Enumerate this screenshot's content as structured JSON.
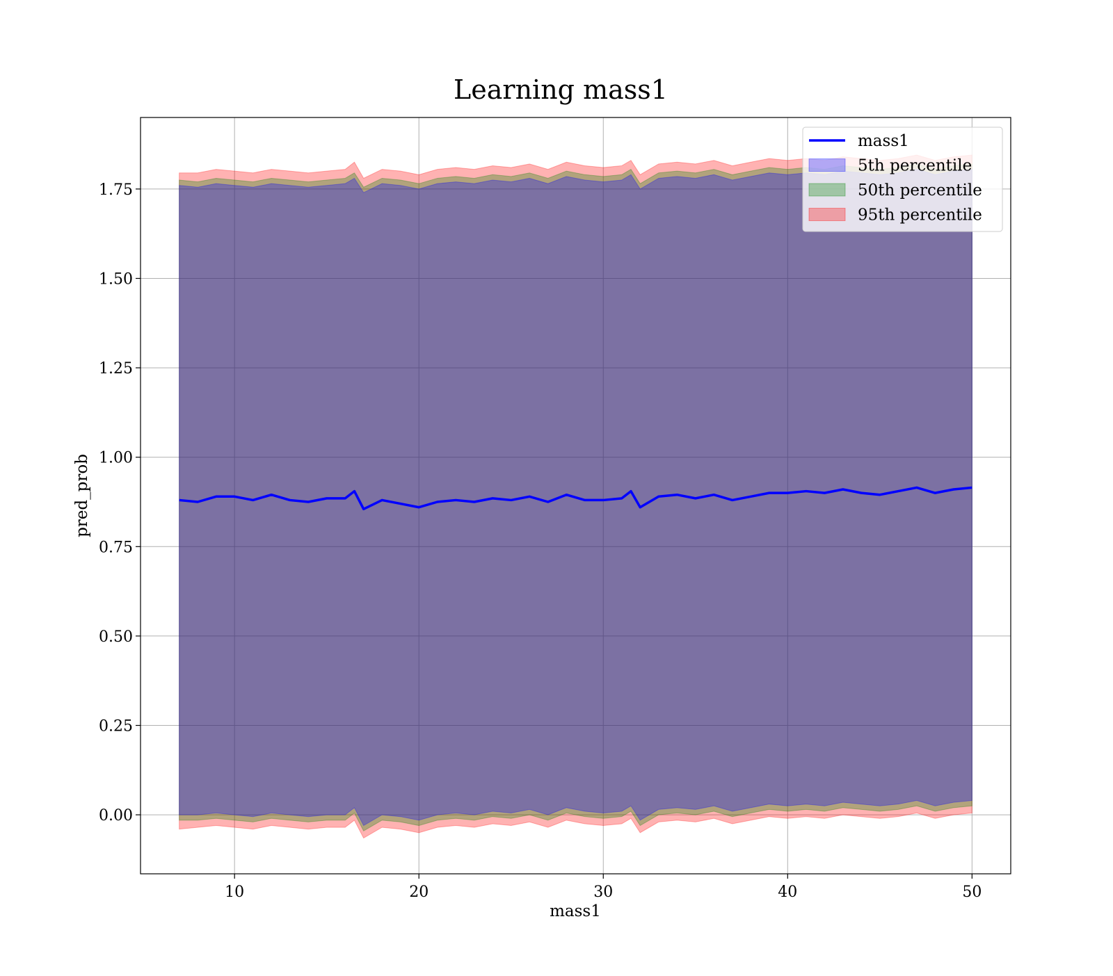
{
  "chart_data": {
    "type": "area",
    "title": "Learning mass1",
    "xlabel": "mass1",
    "ylabel": "pred_prob",
    "xlim": [
      4.9,
      52.1
    ],
    "ylim": [
      -0.165,
      1.95
    ],
    "x_ticks": [
      10,
      20,
      30,
      40,
      50
    ],
    "x_tick_labels": [
      "10",
      "20",
      "30",
      "40",
      "50"
    ],
    "y_ticks": [
      0.0,
      0.25,
      0.5,
      0.75,
      1.0,
      1.25,
      1.5,
      1.75
    ],
    "y_tick_labels": [
      "0.00",
      "0.25",
      "0.50",
      "0.75",
      "1.00",
      "1.25",
      "1.50",
      "1.75"
    ],
    "grid": true,
    "legend_position": "top-right",
    "x": [
      7.0,
      8.0,
      9.0,
      10.0,
      11.0,
      12.0,
      13.0,
      14.0,
      15.0,
      16.0,
      16.5,
      17.0,
      18.0,
      19.0,
      20.0,
      21.0,
      22.0,
      23.0,
      24.0,
      25.0,
      26.0,
      27.0,
      28.0,
      29.0,
      30.0,
      31.0,
      31.5,
      32.0,
      33.0,
      34.0,
      35.0,
      36.0,
      37.0,
      38.0,
      39.0,
      40.0,
      41.0,
      42.0,
      43.0,
      44.0,
      45.0,
      46.0,
      47.0,
      48.0,
      49.0,
      50.0
    ],
    "series": [
      {
        "name": "mass1",
        "kind": "line",
        "color": "#0000ff",
        "values": [
          0.88,
          0.875,
          0.89,
          0.89,
          0.88,
          0.895,
          0.88,
          0.875,
          0.885,
          0.885,
          0.905,
          0.855,
          0.88,
          0.87,
          0.86,
          0.875,
          0.88,
          0.875,
          0.885,
          0.88,
          0.89,
          0.875,
          0.895,
          0.88,
          0.88,
          0.885,
          0.905,
          0.86,
          0.89,
          0.895,
          0.885,
          0.895,
          0.88,
          0.89,
          0.9,
          0.9,
          0.905,
          0.9,
          0.91,
          0.9,
          0.895,
          0.905,
          0.915,
          0.9,
          0.91,
          0.915
        ]
      },
      {
        "name": "5th percentile",
        "kind": "band",
        "color": "#0000ff",
        "lower": [
          0.0,
          0.0,
          0.005,
          0.0,
          -0.005,
          0.005,
          0.0,
          -0.005,
          0.0,
          0.0,
          0.02,
          -0.03,
          0.0,
          -0.005,
          -0.015,
          0.0,
          0.005,
          0.0,
          0.01,
          0.005,
          0.015,
          0.0,
          0.02,
          0.01,
          0.005,
          0.01,
          0.025,
          -0.015,
          0.015,
          0.02,
          0.015,
          0.025,
          0.01,
          0.02,
          0.03,
          0.025,
          0.03,
          0.025,
          0.035,
          0.03,
          0.025,
          0.03,
          0.04,
          0.025,
          0.035,
          0.04
        ],
        "upper": [
          1.76,
          1.755,
          1.765,
          1.76,
          1.755,
          1.765,
          1.76,
          1.755,
          1.76,
          1.765,
          1.78,
          1.74,
          1.765,
          1.76,
          1.75,
          1.765,
          1.77,
          1.765,
          1.775,
          1.77,
          1.78,
          1.765,
          1.785,
          1.775,
          1.77,
          1.775,
          1.79,
          1.75,
          1.78,
          1.785,
          1.78,
          1.79,
          1.775,
          1.785,
          1.795,
          1.79,
          1.795,
          1.79,
          1.8,
          1.795,
          1.79,
          1.795,
          1.805,
          1.79,
          1.8,
          1.805
        ]
      },
      {
        "name": "50th percentile",
        "kind": "band",
        "color": "#008000",
        "lower": [
          -0.015,
          -0.015,
          -0.01,
          -0.015,
          -0.02,
          -0.01,
          -0.015,
          -0.02,
          -0.015,
          -0.015,
          0.005,
          -0.045,
          -0.015,
          -0.02,
          -0.03,
          -0.015,
          -0.01,
          -0.015,
          -0.005,
          -0.01,
          0.0,
          -0.015,
          0.005,
          -0.005,
          -0.01,
          -0.005,
          0.01,
          -0.03,
          0.0,
          0.005,
          0.0,
          0.01,
          -0.005,
          0.005,
          0.015,
          0.01,
          0.015,
          0.01,
          0.02,
          0.015,
          0.01,
          0.015,
          0.025,
          0.01,
          0.02,
          0.025
        ],
        "upper": [
          1.775,
          1.77,
          1.78,
          1.775,
          1.77,
          1.78,
          1.775,
          1.77,
          1.775,
          1.78,
          1.795,
          1.755,
          1.78,
          1.775,
          1.765,
          1.78,
          1.785,
          1.78,
          1.79,
          1.785,
          1.795,
          1.78,
          1.8,
          1.79,
          1.785,
          1.79,
          1.805,
          1.765,
          1.795,
          1.8,
          1.795,
          1.805,
          1.79,
          1.8,
          1.81,
          1.805,
          1.81,
          1.805,
          1.815,
          1.81,
          1.805,
          1.81,
          1.82,
          1.805,
          1.815,
          1.82
        ]
      },
      {
        "name": "95th percentile",
        "kind": "band",
        "color": "#ff0000",
        "lower": [
          -0.04,
          -0.035,
          -0.03,
          -0.035,
          -0.04,
          -0.03,
          -0.035,
          -0.04,
          -0.035,
          -0.035,
          -0.015,
          -0.065,
          -0.035,
          -0.04,
          -0.05,
          -0.035,
          -0.03,
          -0.035,
          -0.025,
          -0.03,
          -0.02,
          -0.035,
          -0.015,
          -0.025,
          -0.03,
          -0.025,
          -0.01,
          -0.05,
          -0.02,
          -0.015,
          -0.02,
          -0.01,
          -0.025,
          -0.015,
          -0.005,
          -0.01,
          -0.005,
          -0.01,
          0.0,
          -0.005,
          -0.01,
          -0.005,
          0.005,
          -0.01,
          0.0,
          0.005
        ],
        "upper": [
          1.795,
          1.795,
          1.805,
          1.8,
          1.795,
          1.805,
          1.8,
          1.795,
          1.8,
          1.805,
          1.825,
          1.78,
          1.805,
          1.8,
          1.79,
          1.805,
          1.81,
          1.805,
          1.815,
          1.81,
          1.82,
          1.805,
          1.825,
          1.815,
          1.81,
          1.815,
          1.83,
          1.79,
          1.82,
          1.825,
          1.82,
          1.83,
          1.815,
          1.825,
          1.835,
          1.83,
          1.835,
          1.83,
          1.84,
          1.835,
          1.83,
          1.835,
          1.845,
          1.83,
          1.84,
          1.845
        ]
      }
    ]
  }
}
